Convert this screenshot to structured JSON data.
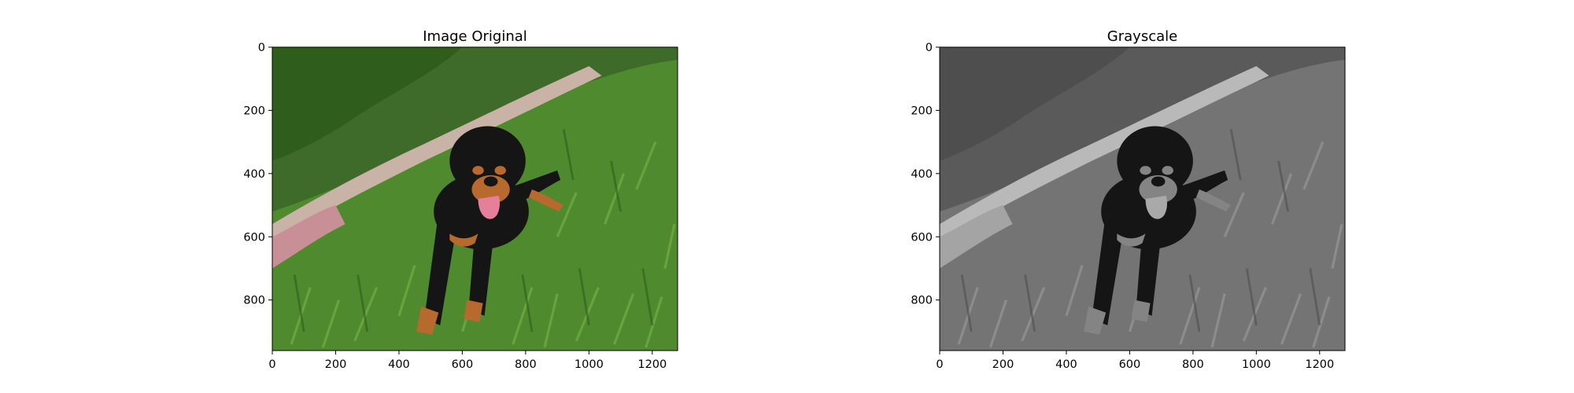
{
  "figure": {
    "background": "#ffffff",
    "panels": [
      {
        "id": "original",
        "title": "Image Original",
        "mode": "color",
        "image_width": 1280,
        "image_height": 960,
        "x_ticks": [
          0,
          200,
          400,
          600,
          800,
          1000,
          1200
        ],
        "y_ticks": [
          0,
          200,
          400,
          600,
          800
        ],
        "x_tick_labels": [
          "0",
          "200",
          "400",
          "600",
          "800",
          "1000",
          "1200"
        ],
        "y_tick_labels": [
          "0",
          "200",
          "400",
          "600",
          "800"
        ]
      },
      {
        "id": "grayscale",
        "title": "Grayscale",
        "mode": "gray",
        "image_width": 1280,
        "image_height": 960,
        "x_ticks": [
          0,
          200,
          400,
          600,
          800,
          1000,
          1200
        ],
        "y_ticks": [
          0,
          200,
          400,
          600,
          800
        ],
        "x_tick_labels": [
          "0",
          "200",
          "400",
          "600",
          "800",
          "1000",
          "1200"
        ],
        "y_tick_labels": [
          "0",
          "200",
          "400",
          "600",
          "800"
        ]
      }
    ]
  },
  "scene": {
    "subject": "dog-in-grass",
    "colors": {
      "grass": "#4f8a2e",
      "grass_dark": "#2f5e1c",
      "grass_light": "#7fb84a",
      "planter": "#c9b3a6",
      "planter_pink": "#c98f96",
      "foliage": "#3e6b2a",
      "dog_black": "#151515",
      "dog_tan": "#b8692e",
      "tongue": "#e57f9a"
    }
  }
}
